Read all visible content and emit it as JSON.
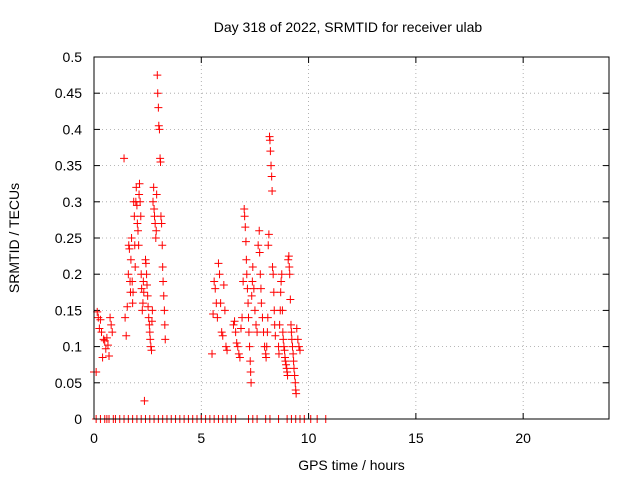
{
  "chart_data": {
    "type": "scatter",
    "title": "Day 318 of 2022, SRMTID for receiver ulab",
    "xlabel": "GPS time / hours",
    "ylabel": "SRMTID / TECUs",
    "xlim": [
      0,
      24
    ],
    "ylim": [
      0,
      0.5
    ],
    "xticks": [
      0,
      5,
      10,
      15,
      20
    ],
    "yticks": [
      0,
      0.05,
      0.1,
      0.15,
      0.2,
      0.25,
      0.3,
      0.35,
      0.4,
      0.45,
      0.5
    ],
    "ytick_labels": [
      "0",
      "0.05",
      "0.1",
      "0.15",
      "0.2",
      "0.25",
      "0.3",
      "0.35",
      "0.4",
      "0.45",
      "0.5"
    ],
    "grid": true,
    "marker": "+",
    "color": "#ff0000",
    "series": [
      {
        "name": "SRMTID",
        "points": [
          [
            0.0,
            0.065
          ],
          [
            0.1,
            0.065
          ],
          [
            0.15,
            0.148
          ],
          [
            0.2,
            0.14
          ],
          [
            0.25,
            0.125
          ],
          [
            0.3,
            0.137
          ],
          [
            0.35,
            0.12
          ],
          [
            0.4,
            0.085
          ],
          [
            0.45,
            0.11
          ],
          [
            0.5,
            0.108
          ],
          [
            0.55,
            0.097
          ],
          [
            0.6,
            0.112
          ],
          [
            0.65,
            0.102
          ],
          [
            0.7,
            0.087
          ],
          [
            0.75,
            0.14
          ],
          [
            0.8,
            0.13
          ],
          [
            0.85,
            0.12
          ],
          [
            1.4,
            0.36
          ],
          [
            1.45,
            0.14
          ],
          [
            1.5,
            0.115
          ],
          [
            1.55,
            0.155
          ],
          [
            1.6,
            0.2
          ],
          [
            1.62,
            0.24
          ],
          [
            1.65,
            0.235
          ],
          [
            1.68,
            0.19
          ],
          [
            1.7,
            0.175
          ],
          [
            1.72,
            0.22
          ],
          [
            1.75,
            0.25
          ],
          [
            1.78,
            0.19
          ],
          [
            1.8,
            0.16
          ],
          [
            1.82,
            0.175
          ],
          [
            1.85,
            0.3
          ],
          [
            1.88,
            0.28
          ],
          [
            1.9,
            0.24
          ],
          [
            1.92,
            0.21
          ],
          [
            1.95,
            0.3
          ],
          [
            1.97,
            0.32
          ],
          [
            2.0,
            0.295
          ],
          [
            2.02,
            0.27
          ],
          [
            2.05,
            0.26
          ],
          [
            2.08,
            0.24
          ],
          [
            2.1,
            0.31
          ],
          [
            2.12,
            0.325
          ],
          [
            2.15,
            0.3
          ],
          [
            2.18,
            0.28
          ],
          [
            2.2,
            0.2
          ],
          [
            2.22,
            0.18
          ],
          [
            2.25,
            0.15
          ],
          [
            2.28,
            0.16
          ],
          [
            2.3,
            0.19
          ],
          [
            2.32,
            0.175
          ],
          [
            2.35,
            0.025
          ],
          [
            2.4,
            0.22
          ],
          [
            2.42,
            0.215
          ],
          [
            2.45,
            0.2
          ],
          [
            2.47,
            0.185
          ],
          [
            2.5,
            0.17
          ],
          [
            2.52,
            0.155
          ],
          [
            2.55,
            0.14
          ],
          [
            2.58,
            0.13
          ],
          [
            2.6,
            0.12
          ],
          [
            2.62,
            0.11
          ],
          [
            2.65,
            0.1
          ],
          [
            2.68,
            0.095
          ],
          [
            2.7,
            0.135
          ],
          [
            2.72,
            0.15
          ],
          [
            2.75,
            0.3
          ],
          [
            2.78,
            0.32
          ],
          [
            2.8,
            0.29
          ],
          [
            2.82,
            0.28
          ],
          [
            2.85,
            0.27
          ],
          [
            2.88,
            0.25
          ],
          [
            2.9,
            0.26
          ],
          [
            2.92,
            0.31
          ],
          [
            2.95,
            0.475
          ],
          [
            2.97,
            0.45
          ],
          [
            3.0,
            0.43
          ],
          [
            3.02,
            0.405
          ],
          [
            3.05,
            0.4
          ],
          [
            3.08,
            0.36
          ],
          [
            3.1,
            0.355
          ],
          [
            3.12,
            0.28
          ],
          [
            3.15,
            0.27
          ],
          [
            3.18,
            0.24
          ],
          [
            3.2,
            0.21
          ],
          [
            3.22,
            0.19
          ],
          [
            3.25,
            0.17
          ],
          [
            3.28,
            0.15
          ],
          [
            3.3,
            0.13
          ],
          [
            3.32,
            0.11
          ],
          [
            5.5,
            0.09
          ],
          [
            5.55,
            0.145
          ],
          [
            5.6,
            0.19
          ],
          [
            5.65,
            0.18
          ],
          [
            5.7,
            0.16
          ],
          [
            5.75,
            0.14
          ],
          [
            5.8,
            0.215
          ],
          [
            5.85,
            0.2
          ],
          [
            5.9,
            0.16
          ],
          [
            5.95,
            0.12
          ],
          [
            6.0,
            0.115
          ],
          [
            6.05,
            0.185
          ],
          [
            6.1,
            0.15
          ],
          [
            6.15,
            0.1
          ],
          [
            6.2,
            0.095
          ],
          [
            6.5,
            0.13
          ],
          [
            6.55,
            0.135
          ],
          [
            6.6,
            0.12
          ],
          [
            6.65,
            0.105
          ],
          [
            6.7,
            0.1
          ],
          [
            6.75,
            0.09
          ],
          [
            6.8,
            0.085
          ],
          [
            6.85,
            0.125
          ],
          [
            6.9,
            0.14
          ],
          [
            6.95,
            0.19
          ],
          [
            7.0,
            0.29
          ],
          [
            7.02,
            0.28
          ],
          [
            7.05,
            0.265
          ],
          [
            7.08,
            0.245
          ],
          [
            7.1,
            0.22
          ],
          [
            7.12,
            0.2
          ],
          [
            7.15,
            0.18
          ],
          [
            7.18,
            0.16
          ],
          [
            7.2,
            0.14
          ],
          [
            7.22,
            0.12
          ],
          [
            7.25,
            0.1
          ],
          [
            7.28,
            0.08
          ],
          [
            7.3,
            0.065
          ],
          [
            7.32,
            0.05
          ],
          [
            7.35,
            0.17
          ],
          [
            7.38,
            0.19
          ],
          [
            7.4,
            0.21
          ],
          [
            7.45,
            0.18
          ],
          [
            7.5,
            0.15
          ],
          [
            7.55,
            0.13
          ],
          [
            7.6,
            0.12
          ],
          [
            7.65,
            0.24
          ],
          [
            7.7,
            0.26
          ],
          [
            7.72,
            0.23
          ],
          [
            7.75,
            0.2
          ],
          [
            7.78,
            0.18
          ],
          [
            7.8,
            0.16
          ],
          [
            7.85,
            0.14
          ],
          [
            7.9,
            0.12
          ],
          [
            7.95,
            0.1
          ],
          [
            8.0,
            0.09
          ],
          [
            8.02,
            0.085
          ],
          [
            8.05,
            0.1
          ],
          [
            8.08,
            0.12
          ],
          [
            8.1,
            0.14
          ],
          [
            8.12,
            0.24
          ],
          [
            8.15,
            0.255
          ],
          [
            8.18,
            0.39
          ],
          [
            8.2,
            0.385
          ],
          [
            8.22,
            0.37
          ],
          [
            8.25,
            0.35
          ],
          [
            8.28,
            0.335
          ],
          [
            8.3,
            0.315
          ],
          [
            8.32,
            0.21
          ],
          [
            8.35,
            0.2
          ],
          [
            8.38,
            0.175
          ],
          [
            8.4,
            0.15
          ],
          [
            8.42,
            0.13
          ],
          [
            8.45,
            0.115
          ],
          [
            8.6,
            0.1
          ],
          [
            8.62,
            0.09
          ],
          [
            8.65,
            0.13
          ],
          [
            8.68,
            0.15
          ],
          [
            8.7,
            0.175
          ],
          [
            8.72,
            0.19
          ],
          [
            8.75,
            0.2
          ],
          [
            8.78,
            0.15
          ],
          [
            8.8,
            0.12
          ],
          [
            8.82,
            0.11
          ],
          [
            8.85,
            0.1
          ],
          [
            8.88,
            0.095
          ],
          [
            8.9,
            0.085
          ],
          [
            8.92,
            0.08
          ],
          [
            8.95,
            0.075
          ],
          [
            8.98,
            0.07
          ],
          [
            9.0,
            0.065
          ],
          [
            9.02,
            0.06
          ],
          [
            9.05,
            0.22
          ],
          [
            9.08,
            0.225
          ],
          [
            9.1,
            0.21
          ],
          [
            9.12,
            0.2
          ],
          [
            9.15,
            0.165
          ],
          [
            9.18,
            0.13
          ],
          [
            9.2,
            0.12
          ],
          [
            9.22,
            0.11
          ],
          [
            9.25,
            0.1
          ],
          [
            9.28,
            0.09
          ],
          [
            9.3,
            0.08
          ],
          [
            9.32,
            0.07
          ],
          [
            9.35,
            0.06
          ],
          [
            9.38,
            0.05
          ],
          [
            9.4,
            0.04
          ],
          [
            9.42,
            0.035
          ],
          [
            9.45,
            0.125
          ],
          [
            9.5,
            0.11
          ],
          [
            9.55,
            0.1
          ],
          [
            9.6,
            0.095
          ],
          [
            0.1,
            0.0
          ],
          [
            0.3,
            0.0
          ],
          [
            0.5,
            0.0
          ],
          [
            0.6,
            0.0
          ],
          [
            0.7,
            0.0
          ],
          [
            0.9,
            0.0
          ],
          [
            1.0,
            0.0
          ],
          [
            1.2,
            0.0
          ],
          [
            1.4,
            0.0
          ],
          [
            1.6,
            0.0
          ],
          [
            1.8,
            0.0
          ],
          [
            2.0,
            0.0
          ],
          [
            2.2,
            0.0
          ],
          [
            2.4,
            0.0
          ],
          [
            2.6,
            0.0
          ],
          [
            2.8,
            0.0
          ],
          [
            3.0,
            0.0
          ],
          [
            3.2,
            0.0
          ],
          [
            3.4,
            0.0
          ],
          [
            3.6,
            0.0
          ],
          [
            3.8,
            0.0
          ],
          [
            4.0,
            0.0
          ],
          [
            4.2,
            0.0
          ],
          [
            4.4,
            0.0
          ],
          [
            4.6,
            0.0
          ],
          [
            4.8,
            0.0
          ],
          [
            5.0,
            0.0
          ],
          [
            5.2,
            0.0
          ],
          [
            5.4,
            0.0
          ],
          [
            5.6,
            0.0
          ],
          [
            5.8,
            0.0
          ],
          [
            6.0,
            0.0
          ],
          [
            6.2,
            0.0
          ],
          [
            6.4,
            0.0
          ],
          [
            6.6,
            0.0
          ],
          [
            7.2,
            0.0
          ],
          [
            7.4,
            0.0
          ],
          [
            7.6,
            0.0
          ],
          [
            8.0,
            0.0
          ],
          [
            8.2,
            0.0
          ],
          [
            8.6,
            0.0
          ],
          [
            9.0,
            0.0
          ],
          [
            9.2,
            0.0
          ],
          [
            9.4,
            0.0
          ],
          [
            9.6,
            0.0
          ],
          [
            9.8,
            0.0
          ],
          [
            10.1,
            0.0
          ],
          [
            10.4,
            0.0
          ],
          [
            10.8,
            0.0
          ]
        ]
      }
    ]
  }
}
